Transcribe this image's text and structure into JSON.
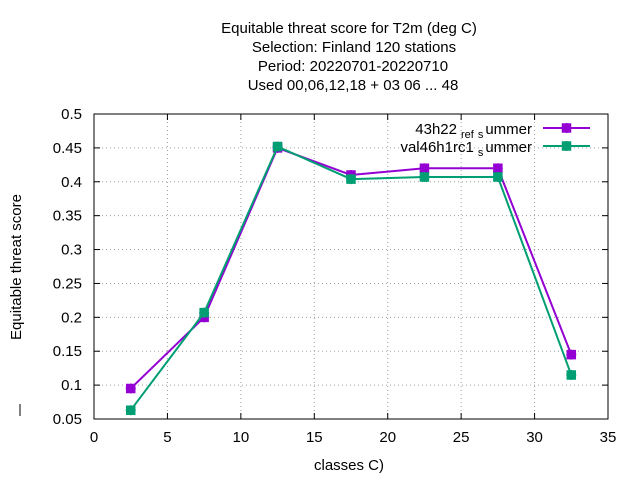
{
  "chart_data": {
    "type": "line",
    "title_lines": [
      "Equitable threat score  for T2m (deg C)",
      "Selection: Finland    120 stations",
      "Period: 20220701-20220710",
      "Used  00,06,12,18  + 03 06 ... 48"
    ],
    "xlabel": "classes C)",
    "ylabel": "Equitable threat score",
    "xlim": [
      0,
      35
    ],
    "ylim": [
      0.05,
      0.5
    ],
    "xticks": [
      0,
      5,
      10,
      15,
      20,
      25,
      30,
      35
    ],
    "yticks": [
      0.05,
      0.1,
      0.15,
      0.2,
      0.25,
      0.3,
      0.35,
      0.4,
      0.45,
      0.5
    ],
    "xtick_labels": [
      "0",
      "5",
      "10",
      "15",
      "20",
      "25",
      "30",
      "35"
    ],
    "ytick_labels": [
      "0.05",
      "0.1",
      "0.15",
      "0.2",
      "0.25",
      "0.3",
      "0.35",
      "0.4",
      "0.45",
      "0.5"
    ],
    "grid": true,
    "legend_position": "top-right",
    "x": [
      2.5,
      7.5,
      12.5,
      17.5,
      22.5,
      27.5,
      32.5
    ],
    "series": [
      {
        "name_main": "43h22",
        "name_sub1": "ref",
        "name_sub2": "s",
        "name_end": "ummer",
        "color": "#9400d3",
        "values": [
          0.095,
          0.2,
          0.45,
          0.41,
          0.42,
          0.42,
          0.145
        ]
      },
      {
        "name_main": "val46h1rc1",
        "name_sub1": "",
        "name_sub2": "s",
        "name_end": "ummer",
        "color": "#009e73",
        "values": [
          0.063,
          0.207,
          0.452,
          0.404,
          0.407,
          0.407,
          0.115
        ]
      }
    ]
  }
}
